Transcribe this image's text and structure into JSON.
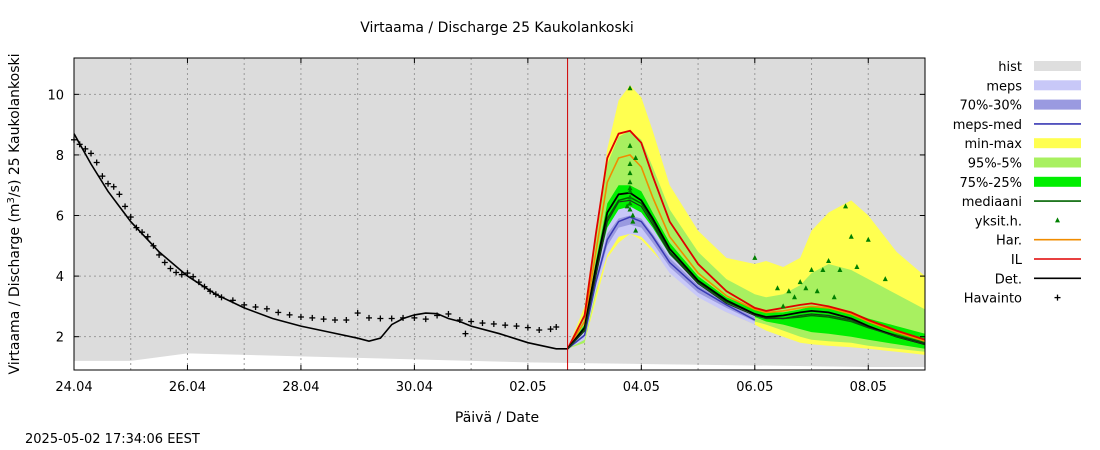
{
  "chart_data": {
    "type": "line",
    "title": "Virtaama / Discharge  25 Kaukolankoski",
    "ylabel_main": "Virtaama / Discharge (m",
    "ylabel_sup": "3",
    "ylabel_rest": "/s)  25 Kaukolankoski",
    "xlabel": "Päivä / Date",
    "timestamp": "2025-05-02 17:34:06 EEST",
    "x_unit": "days since 24.04",
    "xlim": [
      0,
      15
    ],
    "ylim": [
      0.9,
      11.2
    ],
    "x_ticks": [
      {
        "x": 0,
        "label": "24.04"
      },
      {
        "x": 2,
        "label": "26.04"
      },
      {
        "x": 4,
        "label": "28.04"
      },
      {
        "x": 6,
        "label": "30.04"
      },
      {
        "x": 8,
        "label": "02.05"
      },
      {
        "x": 10,
        "label": "04.05"
      },
      {
        "x": 12,
        "label": "06.05"
      },
      {
        "x": 14,
        "label": "08.05"
      }
    ],
    "y_ticks": [
      2,
      4,
      6,
      8,
      10
    ],
    "forecast_start": 8.7,
    "grid": true,
    "legend_position": "right",
    "colors": {
      "plot_bg": "#dcdcdc",
      "hist": "#dedede",
      "meps": "#c8c8f8",
      "p70_30": "#9a9ae0",
      "meps_med": "#3a3ab4",
      "minmax": "#ffff50",
      "p95_5": "#a8f060",
      "p75_25": "#00ee00",
      "mediaani": "#006400",
      "yksit": "#008000",
      "har": "#f08c00",
      "il": "#e00000",
      "det": "#000000",
      "havainto": "#000000",
      "forecast_line": "#d00000"
    },
    "legend": [
      {
        "label": "hist",
        "kind": "box",
        "color": "#dedede"
      },
      {
        "label": "meps",
        "kind": "box",
        "color": "#c8c8f8"
      },
      {
        "label": "70%-30%",
        "kind": "box",
        "color": "#9a9ae0"
      },
      {
        "label": "meps-med",
        "kind": "line",
        "color": "#3a3ab4"
      },
      {
        "label": "min-max",
        "kind": "box",
        "color": "#ffff50"
      },
      {
        "label": "95%-5%",
        "kind": "box",
        "color": "#a8f060"
      },
      {
        "label": "75%-25%",
        "kind": "box",
        "color": "#00ee00"
      },
      {
        "label": "mediaani",
        "kind": "line",
        "color": "#006400"
      },
      {
        "label": "yksit.h.",
        "kind": "tri",
        "color": "#008000"
      },
      {
        "label": "Har.",
        "kind": "line",
        "color": "#f08c00"
      },
      {
        "label": "IL",
        "kind": "line",
        "color": "#e00000"
      },
      {
        "label": "Det.",
        "kind": "line",
        "color": "#000000"
      },
      {
        "label": "Havainto",
        "kind": "plus",
        "color": "#000000"
      }
    ],
    "hist_lower": {
      "x": [
        0,
        1,
        2,
        4,
        6,
        8,
        10,
        12,
        14,
        15
      ],
      "y": [
        1.2,
        1.2,
        1.45,
        1.35,
        1.25,
        1.15,
        1.1,
        1.05,
        1.0,
        1.0
      ]
    },
    "observations": {
      "x": [
        0.0,
        0.1,
        0.2,
        0.3,
        0.4,
        0.5,
        0.6,
        0.7,
        0.8,
        0.9,
        1.0,
        1.1,
        1.2,
        1.3,
        1.4,
        1.5,
        1.6,
        1.7,
        1.8,
        1.9,
        2.0,
        2.1,
        2.2,
        2.3,
        2.4,
        2.5,
        2.6,
        2.8,
        3.0,
        3.2,
        3.4,
        3.6,
        3.8,
        4.0,
        4.2,
        4.4,
        4.6,
        4.8,
        5.0,
        5.2,
        5.4,
        5.6,
        5.8,
        6.0,
        6.2,
        6.4,
        6.6,
        6.8,
        7.0,
        7.2,
        7.4,
        7.6,
        7.8,
        8.0,
        8.2,
        8.4,
        8.5
      ],
      "y": [
        8.5,
        8.35,
        8.2,
        8.05,
        7.75,
        7.3,
        7.05,
        6.95,
        6.7,
        6.3,
        5.95,
        5.6,
        5.45,
        5.3,
        5.0,
        4.7,
        4.45,
        4.25,
        4.12,
        4.05,
        4.1,
        3.98,
        3.8,
        3.65,
        3.5,
        3.4,
        3.3,
        3.2,
        3.05,
        2.98,
        2.92,
        2.8,
        2.72,
        2.65,
        2.62,
        2.58,
        2.55,
        2.55,
        2.78,
        2.62,
        2.6,
        2.6,
        2.62,
        2.62,
        2.58,
        2.7,
        2.75,
        2.55,
        2.5,
        2.45,
        2.42,
        2.38,
        2.35,
        2.3,
        2.22,
        2.25,
        2.32
      ]
    },
    "obs_outlier": {
      "x": 6.9,
      "y": 2.1
    },
    "det_hist": {
      "x": [
        0,
        0.3,
        0.6,
        1.0,
        1.5,
        2.0,
        2.5,
        3.0,
        3.5,
        4.0,
        4.5,
        5.0,
        5.2,
        5.4,
        5.6,
        5.8,
        6.0,
        6.2,
        6.4,
        6.6,
        6.8,
        7.0,
        7.5,
        8.0,
        8.5,
        8.7
      ],
      "y": [
        8.7,
        7.7,
        6.8,
        5.8,
        4.8,
        4.0,
        3.4,
        2.95,
        2.6,
        2.35,
        2.15,
        1.95,
        1.85,
        1.95,
        2.4,
        2.6,
        2.72,
        2.78,
        2.76,
        2.6,
        2.5,
        2.35,
        2.1,
        1.8,
        1.6,
        1.6
      ]
    },
    "forecast_x": [
      8.7,
      9.0,
      9.2,
      9.4,
      9.6,
      9.8,
      10.0,
      10.2,
      10.5,
      11.0,
      11.5,
      12.0,
      12.2,
      12.5,
      12.8,
      13.0,
      13.3,
      13.7,
      14.0,
      14.5,
      15.0
    ],
    "minmax": {
      "upper": [
        1.6,
        3.0,
        5.5,
        8.2,
        9.8,
        10.3,
        9.9,
        8.8,
        7.0,
        5.5,
        4.6,
        4.4,
        4.5,
        4.3,
        4.6,
        5.5,
        6.1,
        6.5,
        6.0,
        4.8,
        4.0
      ],
      "lower": [
        1.6,
        1.8,
        3.2,
        4.6,
        5.1,
        5.4,
        5.2,
        4.8,
        4.2,
        3.4,
        2.8,
        2.4,
        2.2,
        2.0,
        1.8,
        1.75,
        1.7,
        1.65,
        1.6,
        1.5,
        1.4
      ]
    },
    "p95_5": {
      "upper": [
        1.6,
        2.8,
        5.2,
        7.7,
        8.6,
        8.8,
        8.5,
        7.6,
        6.2,
        4.8,
        3.9,
        3.4,
        3.3,
        3.4,
        3.7,
        4.1,
        4.4,
        4.2,
        3.9,
        3.4,
        2.9
      ],
      "lower": [
        1.6,
        1.8,
        3.4,
        4.9,
        5.5,
        5.7,
        5.5,
        5.0,
        4.3,
        3.5,
        2.9,
        2.5,
        2.4,
        2.2,
        2.0,
        1.9,
        1.85,
        1.8,
        1.7,
        1.6,
        1.5
      ]
    },
    "p75_25": {
      "upper": [
        1.6,
        2.4,
        4.5,
        6.4,
        7.0,
        7.0,
        6.8,
        6.1,
        5.1,
        4.0,
        3.3,
        2.9,
        2.8,
        2.8,
        2.9,
        3.0,
        2.95,
        2.8,
        2.6,
        2.35,
        2.1
      ],
      "lower": [
        1.6,
        2.0,
        3.8,
        5.4,
        5.9,
        6.1,
        5.9,
        5.4,
        4.5,
        3.6,
        3.0,
        2.65,
        2.5,
        2.4,
        2.25,
        2.15,
        2.1,
        2.0,
        1.9,
        1.75,
        1.6
      ]
    },
    "meps": {
      "x": [
        8.7,
        9.0,
        9.2,
        9.4,
        9.6,
        9.8,
        10.0,
        10.2,
        10.5,
        11.0,
        11.5,
        12.0
      ],
      "upper": [
        1.6,
        2.2,
        4.1,
        5.6,
        6.2,
        6.3,
        6.1,
        5.6,
        4.7,
        3.8,
        3.2,
        2.7
      ],
      "lower": [
        1.6,
        1.9,
        3.5,
        4.7,
        5.3,
        5.4,
        5.3,
        4.9,
        4.1,
        3.3,
        2.8,
        2.4
      ]
    },
    "p70_30": {
      "x": [
        8.7,
        9.0,
        9.2,
        9.4,
        9.6,
        9.8,
        10.0,
        10.2,
        10.5,
        11.0,
        11.5,
        12.0
      ],
      "upper": [
        1.6,
        2.1,
        3.9,
        5.4,
        5.9,
        6.0,
        5.9,
        5.4,
        4.6,
        3.7,
        3.1,
        2.65
      ],
      "lower": [
        1.6,
        2.0,
        3.7,
        5.0,
        5.6,
        5.7,
        5.6,
        5.1,
        4.3,
        3.45,
        2.95,
        2.5
      ]
    },
    "series": [
      {
        "name": "meps-med",
        "x": [
          8.7,
          9.0,
          9.2,
          9.4,
          9.6,
          9.8,
          10.0,
          10.2,
          10.5,
          11.0,
          11.5,
          12.0
        ],
        "y": [
          1.6,
          2.05,
          3.8,
          5.2,
          5.8,
          5.95,
          5.8,
          5.3,
          4.45,
          3.6,
          3.05,
          2.55
        ]
      },
      {
        "name": "mediaani",
        "x": [
          8.7,
          9.0,
          9.2,
          9.4,
          9.6,
          9.8,
          10.0,
          10.2,
          10.5,
          11.0,
          11.5,
          12.0,
          12.2,
          12.5,
          12.8,
          13.0,
          13.3,
          13.7,
          14.0,
          14.5,
          15.0
        ],
        "y": [
          1.6,
          2.2,
          4.1,
          5.9,
          6.5,
          6.6,
          6.4,
          5.8,
          4.8,
          3.8,
          3.15,
          2.75,
          2.65,
          2.6,
          2.65,
          2.7,
          2.65,
          2.5,
          2.3,
          2.05,
          1.8
        ]
      },
      {
        "name": "Har.",
        "x": [
          8.7,
          9.0,
          9.2,
          9.4,
          9.6,
          9.8,
          10.0,
          10.2,
          10.5,
          11.0,
          11.5,
          12.0,
          12.2,
          12.5,
          12.8,
          13.0,
          13.3,
          13.7,
          14.0,
          14.5,
          15.0
        ],
        "y": [
          1.6,
          2.5,
          4.8,
          7.1,
          7.9,
          8.0,
          7.6,
          6.6,
          5.3,
          4.1,
          3.35,
          2.9,
          2.8,
          2.85,
          2.95,
          3.0,
          2.95,
          2.75,
          2.5,
          2.15,
          1.85
        ]
      },
      {
        "name": "IL",
        "x": [
          8.7,
          9.0,
          9.2,
          9.4,
          9.6,
          9.8,
          10.0,
          10.2,
          10.5,
          11.0,
          11.5,
          12.0,
          12.2,
          12.5,
          12.8,
          13.0,
          13.3,
          13.7,
          14.0,
          14.5,
          15.0
        ],
        "y": [
          1.6,
          2.7,
          5.4,
          7.9,
          8.7,
          8.8,
          8.4,
          7.3,
          5.8,
          4.4,
          3.5,
          2.95,
          2.85,
          2.95,
          3.05,
          3.1,
          3.0,
          2.8,
          2.55,
          2.2,
          1.9
        ]
      },
      {
        "name": "Det.",
        "x": [
          8.7,
          9.0,
          9.2,
          9.4,
          9.6,
          9.8,
          10.0,
          10.2,
          10.5,
          11.0,
          11.5,
          12.0,
          12.2,
          12.5,
          12.8,
          13.0,
          13.3,
          13.7,
          14.0,
          14.5,
          15.0
        ],
        "y": [
          1.6,
          2.3,
          4.3,
          6.1,
          6.7,
          6.75,
          6.5,
          5.9,
          4.9,
          3.85,
          3.2,
          2.75,
          2.65,
          2.7,
          2.8,
          2.85,
          2.8,
          2.6,
          2.35,
          2.0,
          1.75
        ]
      },
      {
        "name": "Det.-dark",
        "x": [
          8.7,
          9.0,
          9.2,
          9.4,
          9.6,
          9.8,
          10.0,
          10.2,
          10.5,
          11.0,
          11.5,
          12.0,
          12.2,
          12.5,
          12.8,
          13.0,
          13.3,
          13.7,
          14.0,
          14.5,
          15.0
        ],
        "y": [
          1.6,
          2.2,
          4.0,
          5.8,
          6.45,
          6.5,
          6.3,
          5.7,
          4.75,
          3.75,
          3.1,
          2.7,
          2.6,
          2.6,
          2.7,
          2.75,
          2.7,
          2.55,
          2.3,
          2.0,
          1.75
        ]
      }
    ],
    "members": {
      "x": [
        9.8,
        9.8,
        9.8,
        9.8,
        9.8,
        9.8,
        9.8,
        9.8,
        9.8,
        9.85,
        9.85,
        9.9,
        9.9,
        9.8,
        9.75,
        12.0,
        12.4,
        12.5,
        12.6,
        12.7,
        12.8,
        12.9,
        13.0,
        13.1,
        13.2,
        13.3,
        13.4,
        13.5,
        13.6,
        13.7,
        13.8,
        14.0,
        14.3
      ],
      "y": [
        10.2,
        8.3,
        7.7,
        7.4,
        7.1,
        6.8,
        6.6,
        6.4,
        6.2,
        6.0,
        5.8,
        5.5,
        7.9,
        6.9,
        6.3,
        4.6,
        3.6,
        3.0,
        3.5,
        3.3,
        3.8,
        3.6,
        4.2,
        3.5,
        4.2,
        4.5,
        3.3,
        4.2,
        6.3,
        5.3,
        4.3,
        5.2,
        3.9
      ]
    }
  }
}
